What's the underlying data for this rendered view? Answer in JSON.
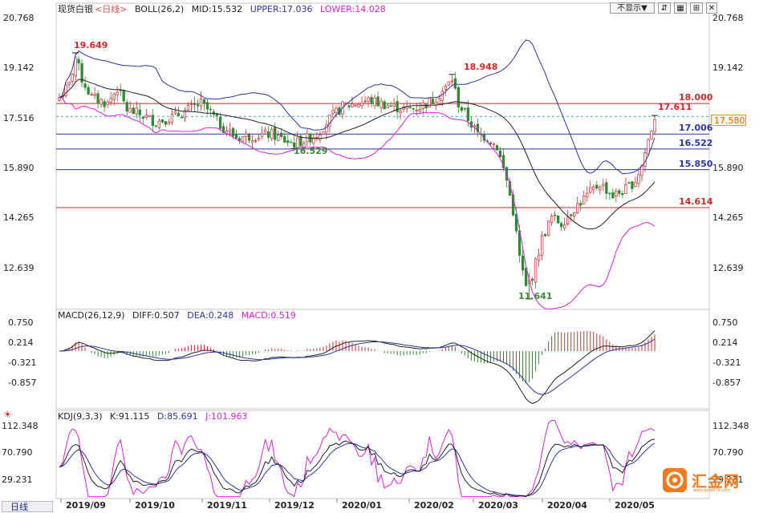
{
  "header": {
    "instrument": "现货白银",
    "period_tag": "<日线>",
    "boll_label": "BOLL(26,2)",
    "mid_label": "MID:15.532",
    "upper_label": "UPPER:17.036",
    "lower_label": "LOWER:14.028",
    "hide_button": "不显示▼",
    "colors": {
      "mid": "#222222",
      "upper": "#2a35a8",
      "lower": "#e020e0",
      "period": "#e0504d"
    }
  },
  "macd_header": {
    "label": "MACD(26,12,9)",
    "diff_label": "DIFF:0.507",
    "dea_label": "DEA:0.248",
    "macd_label": "MACD:0.519"
  },
  "kdj_header": {
    "label": "KDJ(9,3,3)",
    "k_label": "K:91.115",
    "d_label": "D:85.691",
    "j_label": "J:101.963"
  },
  "period_tab": "日线",
  "logo_text": "汇金网",
  "logo_sub": "www.gold678.com",
  "current_price": "17.580",
  "chart_data": {
    "type": "candlestick",
    "x_labels": [
      "2019/09",
      "2019/10",
      "2019/11",
      "2019/12",
      "2020/01",
      "2020/02",
      "2020/03",
      "2020/04",
      "2020/05"
    ],
    "price_ticks": [
      "20.768",
      "19.142",
      "17.516",
      "15.890",
      "14.265",
      "12.639"
    ],
    "price_range": [
      11.3,
      20.9
    ],
    "hlines": [
      {
        "value": 18.0,
        "label": "18.000",
        "color": "#d62828"
      },
      {
        "value": 17.006,
        "label": "17.006",
        "color": "#2a35a8"
      },
      {
        "value": 16.522,
        "label": "16.522",
        "color": "#2a35a8"
      },
      {
        "value": 15.85,
        "label": "15.850",
        "color": "#2a35a8"
      },
      {
        "value": 14.614,
        "label": "14.614",
        "color": "#d62828"
      }
    ],
    "annotations": [
      {
        "text": "19.649",
        "color": "#d62828"
      },
      {
        "text": "18.948",
        "color": "#d62828"
      },
      {
        "text": "17.611",
        "color": "#d62828"
      },
      {
        "text": "16.529",
        "color": "#3a8a3a"
      },
      {
        "text": "11.641",
        "color": "#3a8a3a"
      }
    ],
    "macd_ticks": [
      "0.750",
      "0.214",
      "-0.321",
      "-0.857"
    ],
    "macd_range": [
      -1.5,
      0.9
    ],
    "kdj_ticks": [
      "112.348",
      "70.790",
      "29.231"
    ],
    "kdj_range": [
      0,
      125
    ],
    "colors": {
      "up": "#d62828",
      "down": "#2e8b2e",
      "upper": "#2a35a8",
      "mid": "#222222",
      "lower": "#e020e0",
      "diff": "#222222",
      "dea": "#2a35a8",
      "j": "#e020e0"
    }
  }
}
